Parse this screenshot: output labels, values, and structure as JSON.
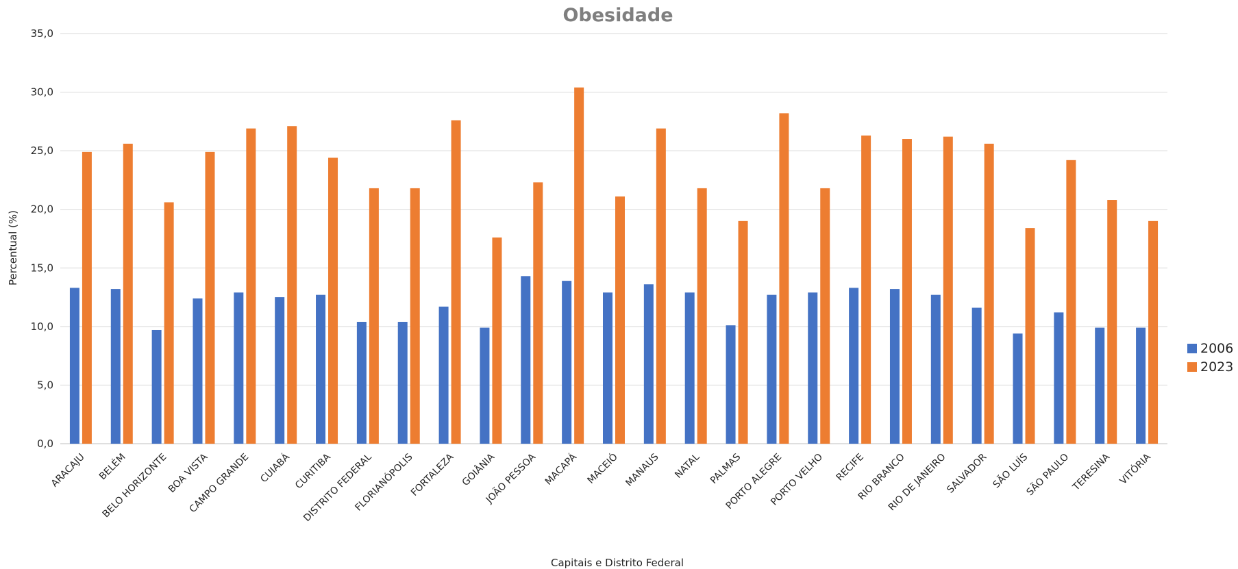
{
  "chart_data": {
    "type": "bar",
    "title": "Obesidade",
    "xlabel": "Capitais e Distrito Federal",
    "ylabel": "Percentual (%)",
    "ylim": [
      0,
      35
    ],
    "yticks": [
      "0,0",
      "5,0",
      "10,0",
      "15,0",
      "20,0",
      "25,0",
      "30,0",
      "35,0"
    ],
    "grid": true,
    "legend_position": "right",
    "categories": [
      "ARACAJU",
      "BELÉM",
      "BELO HORIZONTE",
      "BOA VISTA",
      "CAMPO GRANDE",
      "CUIABÁ",
      "CURITIBA",
      "DISTRITO FEDERAL",
      "FLORIANÓPOLIS",
      "FORTALEZA",
      "GOIÂNIA",
      "JOÃO PESSOA",
      "MACAPÁ",
      "MACEIÓ",
      "MANAUS",
      "NATAL",
      "PALMAS",
      "PORTO ALEGRE",
      "PORTO VELHO",
      "RECIFE",
      "RIO BRANCO",
      "RIO DE JANEIRO",
      "SALVADOR",
      "SÃO LUÍS",
      "SÃO PAULO",
      "TERESINA",
      "VITÓRIA"
    ],
    "series": [
      {
        "name": "2006",
        "color": "#4472c4",
        "values": [
          13.3,
          13.2,
          9.7,
          12.4,
          12.9,
          12.5,
          12.7,
          10.4,
          10.4,
          11.7,
          9.9,
          14.3,
          13.9,
          12.9,
          13.6,
          12.9,
          10.1,
          12.7,
          12.9,
          13.3,
          13.2,
          12.7,
          11.6,
          9.4,
          11.2,
          9.9,
          9.9
        ]
      },
      {
        "name": "2023",
        "color": "#ed7d31",
        "values": [
          24.9,
          25.6,
          20.6,
          24.9,
          26.9,
          27.1,
          24.4,
          21.8,
          21.8,
          27.6,
          17.6,
          22.3,
          30.4,
          21.1,
          26.9,
          21.8,
          19.0,
          28.2,
          21.8,
          26.3,
          26.0,
          26.2,
          25.6,
          18.4,
          24.2,
          20.8,
          19.0
        ]
      }
    ]
  }
}
